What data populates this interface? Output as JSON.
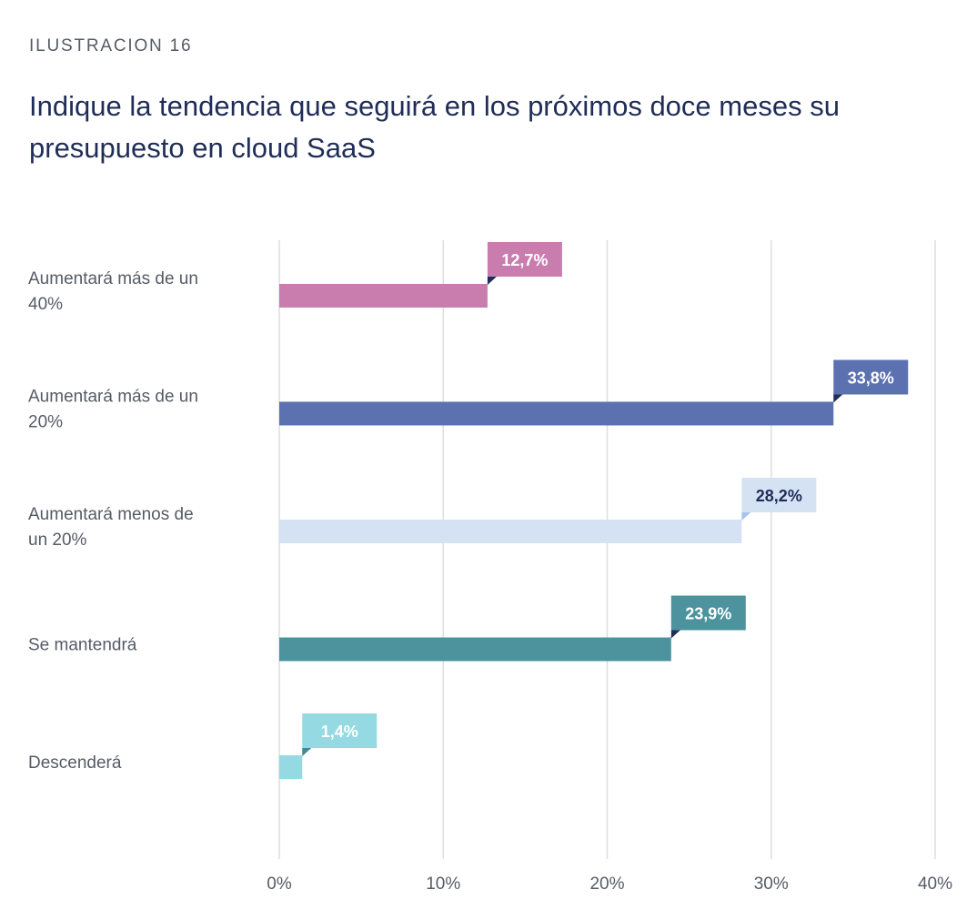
{
  "header": {
    "kicker": "ILUSTRACION 16",
    "title": "Indique la tendencia que seguirá en los próximos doce meses su presupuesto en cloud SaaS"
  },
  "chart_data": {
    "type": "bar",
    "orientation": "horizontal",
    "categories": [
      [
        "Aumentará más de un",
        "40%"
      ],
      [
        "Aumentará más de un",
        "20%"
      ],
      [
        "Aumentará menos de",
        "un 20%"
      ],
      [
        "Se mantendrá"
      ],
      [
        "Descenderá"
      ]
    ],
    "values": [
      12.7,
      33.8,
      28.2,
      23.9,
      1.4
    ],
    "value_labels": [
      "12,7%",
      "33,8%",
      "28,2%",
      "23,9%",
      "1,4%"
    ],
    "bar_colors": [
      "#c97daf",
      "#5c72b0",
      "#d5e2f4",
      "#4c939e",
      "#95d9e2"
    ],
    "label_text_colors": [
      "#ffffff",
      "#ffffff",
      "#1f2d58",
      "#ffffff",
      "#ffffff"
    ],
    "label_notch_colors": [
      "#1f2d58",
      "#1f2d58",
      "#a9c3ea",
      "#1f2d58",
      "#3f8a93"
    ],
    "xlim": [
      0,
      40
    ],
    "xticks": [
      0,
      10,
      20,
      30,
      40
    ],
    "xtick_labels": [
      "0%",
      "10%",
      "20%",
      "30%",
      "40%"
    ],
    "grid": true,
    "gridline_color": "#dedede"
  }
}
